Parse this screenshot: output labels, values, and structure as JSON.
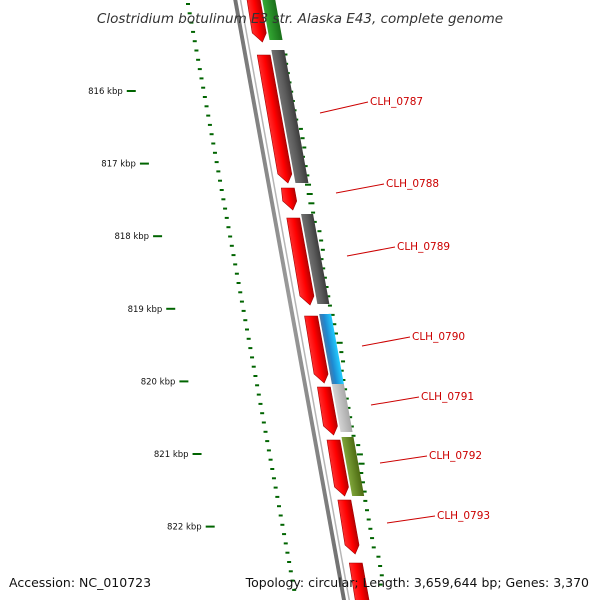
{
  "title": "Clostridium botulinum E3 str. Alaska E43, complete genome",
  "footer": {
    "accession": "Accession: NC_010723",
    "summary": "Topology: circular; Length: 3,659,644 bp; Genes: 3,370"
  },
  "ticks": [
    {
      "label": "816 kbp",
      "kbp": 816
    },
    {
      "label": "817 kbp",
      "kbp": 817
    },
    {
      "label": "818 kbp",
      "kbp": 818
    },
    {
      "label": "819 kbp",
      "kbp": 819
    },
    {
      "label": "820 kbp",
      "kbp": 820
    },
    {
      "label": "821 kbp",
      "kbp": 821
    },
    {
      "label": "822 kbp",
      "kbp": 822
    }
  ],
  "gene_labels": [
    "CLH_0787",
    "CLH_0788",
    "CLH_0789",
    "CLH_0790",
    "CLH_0791",
    "CLH_0792",
    "CLH_0793"
  ],
  "colors": {
    "cds": "#ff0000",
    "cog_dark": "#555555",
    "cog_blue": "#22aadd",
    "cog_light": "#bbbbbb",
    "cog_olive": "#6b8e23",
    "cog_green": "#228b22",
    "gc_skew": "#006400",
    "backbone": "#888888",
    "label": "#cc0000"
  }
}
